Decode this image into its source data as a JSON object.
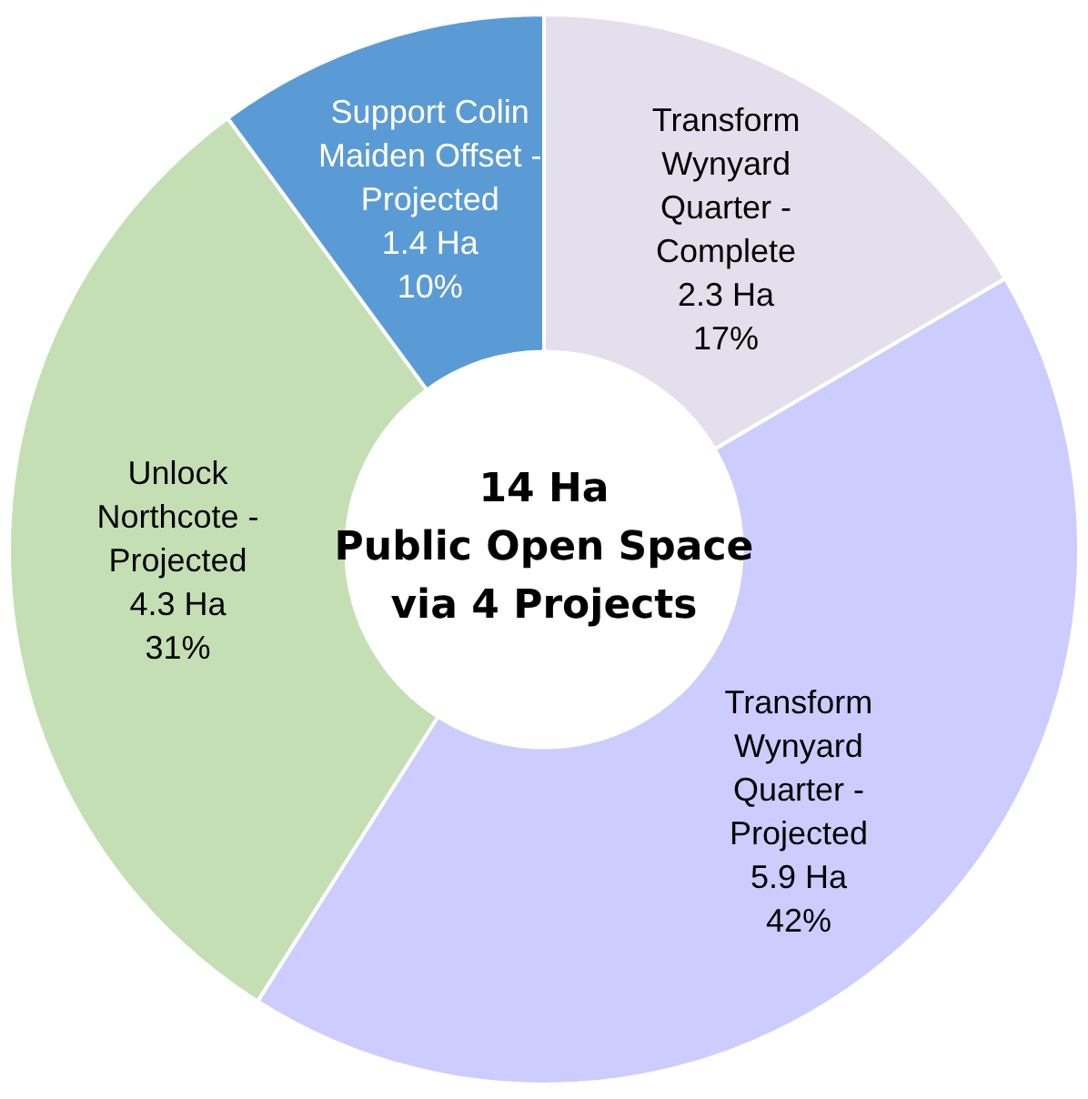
{
  "chart_data": {
    "type": "donut",
    "title": "14 Ha\nPublic Open Space\nvia 4 Projects",
    "categories": [
      "Transform Wynyard Quarter - Complete",
      "Transform Wynyard Quarter - Projected",
      "Unlock Northcote - Projected",
      "Support Colin Maiden Offset - Projected"
    ],
    "values": [
      2.3,
      5.9,
      4.3,
      1.4
    ],
    "colors": [
      "#e4dfec",
      "#ccccff",
      "#c4dfb4",
      "#5b9bd5"
    ],
    "value_labels": [
      "2.3 Ha\n17%",
      "5.9 Ha\n42%",
      "4.3 Ha\n31%",
      "1.4 Ha\n10%"
    ],
    "legend": false
  }
}
